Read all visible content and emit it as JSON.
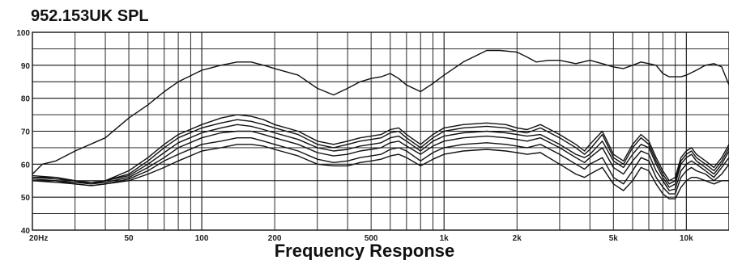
{
  "chart_data": {
    "type": "line",
    "title": "952.153UK SPL",
    "xlabel": "Frequency Response",
    "ylabel": "",
    "x_scale": "log",
    "xlim": [
      20,
      15000
    ],
    "ylim": [
      40,
      100
    ],
    "grid": true,
    "x_ticks": [
      {
        "value": 20,
        "label": "20Hz"
      },
      {
        "value": 50,
        "label": "50"
      },
      {
        "value": 100,
        "label": "100"
      },
      {
        "value": 200,
        "label": "200"
      },
      {
        "value": 500,
        "label": "500"
      },
      {
        "value": 1000,
        "label": "1k"
      },
      {
        "value": 2000,
        "label": "2k"
      },
      {
        "value": 5000,
        "label": "5k"
      },
      {
        "value": 10000,
        "label": "10k"
      }
    ],
    "y_ticks": [
      {
        "value": 40,
        "label": "40"
      },
      {
        "value": 50,
        "label": "50"
      },
      {
        "value": 60,
        "label": "60"
      },
      {
        "value": 70,
        "label": "70"
      },
      {
        "value": 80,
        "label": "80"
      },
      {
        "value": 90,
        "label": "90"
      },
      {
        "value": 100,
        "label": "100"
      }
    ],
    "series": [
      {
        "x": [
          20,
          22,
          25,
          30,
          40,
          50,
          60,
          70,
          80,
          100,
          120,
          140,
          160,
          180,
          200,
          250,
          300,
          350,
          400,
          450,
          500,
          550,
          600,
          650,
          700,
          800,
          900,
          1000,
          1200,
          1500,
          1700,
          2000,
          2200,
          2400,
          2700,
          3000,
          3500,
          4000,
          4500,
          5000,
          5500,
          6000,
          6500,
          7000,
          7500,
          8000,
          8500,
          9000,
          9500,
          10000,
          11000,
          12000,
          13000,
          14000,
          15000
        ],
        "y": [
          57,
          60,
          61,
          64,
          68,
          74,
          78,
          82,
          85,
          88.5,
          90,
          91,
          91,
          90,
          89,
          87,
          83,
          81,
          83,
          85,
          86,
          86.5,
          87.5,
          86,
          84,
          82,
          84.5,
          87,
          91,
          94.5,
          94.5,
          94,
          92.5,
          91,
          91.5,
          91.5,
          90.5,
          91.5,
          90.5,
          89.5,
          89,
          90,
          91,
          90.5,
          90,
          87.5,
          86.5,
          86.5,
          86.5,
          87,
          88.5,
          90,
          90.5,
          89.5,
          84
        ]
      },
      {
        "x": [
          20,
          25,
          30,
          35,
          40,
          50,
          60,
          70,
          80,
          100,
          120,
          140,
          160,
          180,
          200,
          250,
          300,
          350,
          400,
          450,
          500,
          550,
          600,
          650,
          700,
          800,
          900,
          1000,
          1200,
          1500,
          1800,
          2000,
          2200,
          2500,
          3000,
          3500,
          3800,
          4000,
          4500,
          5000,
          5500,
          6000,
          6500,
          7000,
          7500,
          8000,
          8500,
          9000,
          9500,
          10000,
          10500,
          11000,
          12000,
          13000,
          14000,
          15000
        ],
        "y": [
          56,
          56,
          55,
          54,
          55,
          58,
          62,
          66,
          69,
          72,
          74,
          75,
          74.5,
          73.5,
          72,
          70,
          67,
          66,
          67,
          68,
          68.5,
          69,
          70.5,
          71,
          69,
          66,
          69,
          71,
          72,
          72.5,
          72,
          71,
          70.5,
          72,
          69,
          66,
          64,
          66,
          70,
          63,
          61,
          66,
          69,
          67,
          62,
          58,
          55,
          56,
          62,
          64,
          65,
          63,
          61,
          59,
          62,
          66
        ]
      },
      {
        "x": [
          20,
          25,
          30,
          35,
          40,
          50,
          60,
          70,
          80,
          100,
          120,
          140,
          160,
          180,
          200,
          250,
          300,
          350,
          400,
          450,
          500,
          550,
          600,
          650,
          700,
          800,
          900,
          1000,
          1200,
          1500,
          1800,
          2000,
          2200,
          2500,
          3000,
          3500,
          3800,
          4000,
          4500,
          5000,
          5500,
          6000,
          6500,
          7000,
          7500,
          8000,
          8500,
          9000,
          9500,
          10000,
          10500,
          11000,
          12000,
          13000,
          14000,
          15000
        ],
        "y": [
          56.5,
          56,
          55,
          54.5,
          55,
          57,
          61,
          65,
          68,
          71,
          72.5,
          73.5,
          73,
          72,
          71,
          69,
          66,
          65,
          66,
          67,
          67.5,
          68,
          69.5,
          70,
          68,
          65,
          68,
          70,
          71,
          71.5,
          71,
          70,
          69.5,
          71,
          68,
          65,
          63,
          64.5,
          69,
          62,
          60,
          65,
          68,
          66,
          61,
          57,
          54,
          55,
          61,
          63,
          64,
          62,
          60,
          58,
          61,
          65
        ]
      },
      {
        "x": [
          20,
          25,
          30,
          35,
          40,
          50,
          60,
          70,
          80,
          100,
          120,
          140,
          160,
          180,
          200,
          250,
          300,
          350,
          400,
          450,
          500,
          550,
          600,
          650,
          700,
          800,
          900,
          1000,
          1200,
          1500,
          1800,
          2000,
          2200,
          2500,
          3000,
          3500,
          3800,
          4000,
          4500,
          5000,
          5500,
          6000,
          6500,
          7000,
          7500,
          8000,
          8500,
          9000,
          9500,
          10000,
          10500,
          11000,
          12000,
          13000,
          14000,
          15000
        ],
        "y": [
          56,
          55.5,
          55,
          54,
          55,
          56.5,
          60,
          63.5,
          66.5,
          69.5,
          71,
          72,
          71.5,
          70.5,
          69.5,
          67.5,
          65,
          64,
          64.5,
          65.5,
          66,
          66.5,
          68,
          68.5,
          67,
          64,
          67,
          68.5,
          69.5,
          70,
          69.5,
          69,
          68.5,
          69,
          66,
          63,
          62,
          63,
          67,
          61,
          59,
          63,
          66,
          65,
          60,
          56,
          53,
          54,
          60,
          62,
          63,
          61,
          59,
          57,
          60,
          64
        ]
      },
      {
        "x": [
          20,
          25,
          30,
          35,
          40,
          50,
          60,
          70,
          80,
          100,
          120,
          140,
          160,
          180,
          200,
          250,
          300,
          350,
          400,
          450,
          500,
          550,
          600,
          650,
          700,
          800,
          900,
          1000,
          1200,
          1500,
          1800,
          2000,
          2200,
          2500,
          3000,
          3500,
          3800,
          4000,
          4500,
          5000,
          5500,
          6000,
          6500,
          7000,
          7500,
          8000,
          8500,
          9000,
          9500,
          10000,
          10500,
          11000,
          12000,
          13000,
          14000,
          15000
        ],
        "y": [
          55.5,
          55,
          54.5,
          54,
          54.5,
          56,
          59,
          62,
          65,
          68,
          69.5,
          70,
          70,
          69,
          68,
          66,
          63.5,
          62.5,
          63,
          64,
          64.5,
          65,
          66.5,
          67,
          65.5,
          63,
          65.5,
          67,
          68,
          68.5,
          68,
          67.5,
          67,
          68,
          65,
          62,
          60.5,
          62,
          65,
          59,
          57,
          61,
          64,
          63,
          58,
          55,
          52,
          52.5,
          58,
          60,
          61,
          60,
          58,
          56,
          59,
          62
        ]
      },
      {
        "x": [
          20,
          25,
          30,
          35,
          40,
          50,
          60,
          70,
          80,
          100,
          120,
          140,
          160,
          180,
          200,
          250,
          300,
          350,
          400,
          450,
          500,
          550,
          600,
          650,
          700,
          800,
          900,
          1000,
          1200,
          1500,
          1800,
          2000,
          2200,
          2500,
          3000,
          3500,
          3800,
          4000,
          4500,
          5000,
          5500,
          6000,
          6500,
          7000,
          7500,
          8000,
          8500,
          9000,
          9500,
          10000,
          10500,
          11000,
          12000,
          13000,
          14000,
          15000
        ],
        "y": [
          55,
          55,
          54,
          53.5,
          54,
          55.5,
          58,
          61,
          63,
          66,
          67,
          68,
          68,
          67,
          66,
          64,
          61.5,
          60.5,
          61,
          62,
          62.5,
          63,
          64.5,
          65,
          64,
          61,
          63.5,
          65,
          66,
          66.5,
          66,
          65.5,
          65,
          66,
          63,
          60,
          58.5,
          60,
          62,
          56,
          54,
          58,
          62,
          61,
          56,
          53,
          51,
          51,
          56,
          58,
          59,
          58,
          57,
          55,
          57,
          60
        ]
      },
      {
        "x": [
          20,
          25,
          30,
          35,
          40,
          50,
          60,
          70,
          80,
          100,
          120,
          140,
          160,
          180,
          200,
          250,
          300,
          350,
          400,
          450,
          500,
          550,
          600,
          650,
          700,
          800,
          900,
          1000,
          1200,
          1500,
          1800,
          2000,
          2200,
          2500,
          3000,
          3500,
          3800,
          4000,
          4500,
          5000,
          5500,
          6000,
          6500,
          7000,
          7500,
          8000,
          8500,
          9000,
          9500,
          10000,
          10500,
          11000,
          12000,
          13000,
          14000,
          15000
        ],
        "y": [
          55,
          54.5,
          54,
          53.5,
          54,
          55,
          57,
          59,
          61,
          64,
          65,
          66,
          66,
          65.5,
          64.5,
          62.5,
          60,
          59.5,
          59.5,
          60.5,
          61,
          61.5,
          62.5,
          63,
          62,
          59.5,
          61.5,
          63,
          64,
          64.5,
          64,
          63.5,
          63,
          63.5,
          60,
          57,
          56,
          57,
          59,
          54,
          52,
          55,
          59,
          58,
          54,
          51,
          49.5,
          49.5,
          53,
          55,
          56,
          56,
          55,
          54,
          55,
          55
        ]
      }
    ]
  }
}
